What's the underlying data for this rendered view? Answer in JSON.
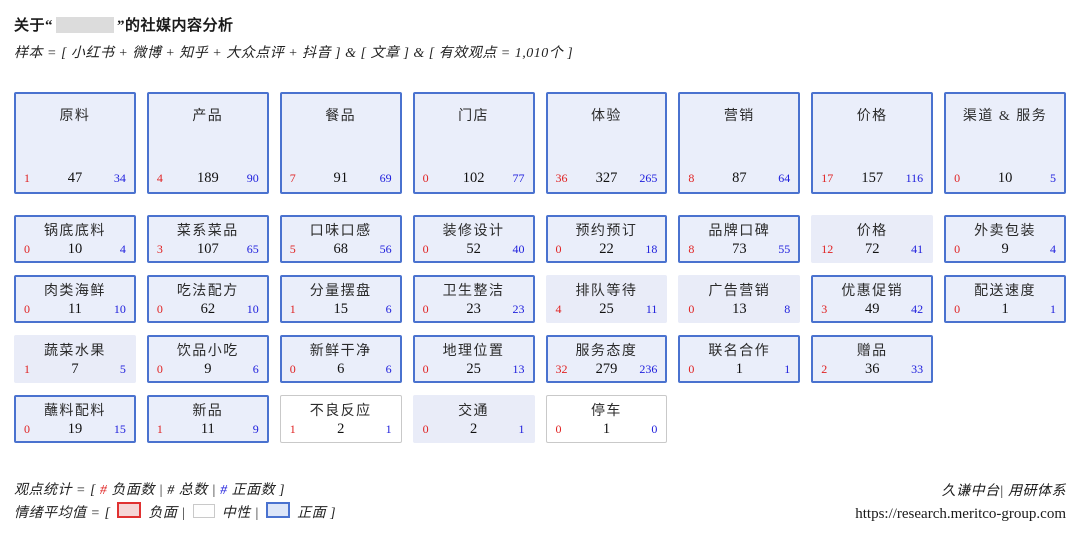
{
  "header": {
    "title_prefix": "关于“",
    "title_suffix": "”的社媒内容分析",
    "subtitle": "样本 = [ 小红书 + 微博 + 知乎 + 大众点评 + 抖音 ] & [ 文章 ] & [ 有效观点 = 1,010个 ]"
  },
  "colors": {
    "positive_border_blue": "#4a72cf",
    "box_fill_lavender": "#eaeefa",
    "negative_count_red": "#e02222",
    "positive_count_blue": "#2020dd",
    "neutral_border_gray": "#c9c9c9",
    "legend_negative_fill": "#f5d6d6",
    "legend_positive_fill": "#dde6f8",
    "redaction_gray": "#dcdcdc"
  },
  "chart_data": {
    "type": "table",
    "title": "关于“  ”的社媒内容分析",
    "value_format": "[负面数 | 总数 | 正面数]",
    "sentiment_styles": [
      "positive = 蓝色边框",
      "mild_positive = 浅蓝底无边框",
      "neutral = 白底灰框"
    ],
    "rows": [
      {
        "size": "large",
        "cells": [
          {
            "label": "原料",
            "neg": 1,
            "total": 47,
            "pos": 34,
            "sentiment": "positive"
          },
          {
            "label": "产品",
            "neg": 4,
            "total": 189,
            "pos": 90,
            "sentiment": "positive"
          },
          {
            "label": "餐品",
            "neg": 7,
            "total": 91,
            "pos": 69,
            "sentiment": "positive"
          },
          {
            "label": "门店",
            "neg": 0,
            "total": 102,
            "pos": 77,
            "sentiment": "positive"
          },
          {
            "label": "体验",
            "neg": 36,
            "total": 327,
            "pos": 265,
            "sentiment": "positive"
          },
          {
            "label": "营销",
            "neg": 8,
            "total": 87,
            "pos": 64,
            "sentiment": "positive"
          },
          {
            "label": "价格",
            "neg": 17,
            "total": 157,
            "pos": 116,
            "sentiment": "positive"
          },
          {
            "label": "渠道 & 服务",
            "neg": 0,
            "total": 10,
            "pos": 5,
            "sentiment": "positive"
          }
        ]
      },
      {
        "size": "small",
        "cells": [
          {
            "label": "锅底底料",
            "neg": 0,
            "total": 10,
            "pos": 4,
            "sentiment": "positive"
          },
          {
            "label": "菜系菜品",
            "neg": 3,
            "total": 107,
            "pos": 65,
            "sentiment": "positive"
          },
          {
            "label": "口味口感",
            "neg": 5,
            "total": 68,
            "pos": 56,
            "sentiment": "positive"
          },
          {
            "label": "装修设计",
            "neg": 0,
            "total": 52,
            "pos": 40,
            "sentiment": "positive"
          },
          {
            "label": "预约预订",
            "neg": 0,
            "total": 22,
            "pos": 18,
            "sentiment": "positive"
          },
          {
            "label": "品牌口碑",
            "neg": 8,
            "total": 73,
            "pos": 55,
            "sentiment": "positive"
          },
          {
            "label": "价格",
            "neg": 12,
            "total": 72,
            "pos": 41,
            "sentiment": "mild_positive"
          },
          {
            "label": "外卖包装",
            "neg": 0,
            "total": 9,
            "pos": 4,
            "sentiment": "positive"
          }
        ]
      },
      {
        "size": "small",
        "cells": [
          {
            "label": "肉类海鲜",
            "neg": 0,
            "total": 11,
            "pos": 10,
            "sentiment": "positive"
          },
          {
            "label": "吃法配方",
            "neg": 0,
            "total": 62,
            "pos": 10,
            "sentiment": "positive"
          },
          {
            "label": "分量摆盘",
            "neg": 1,
            "total": 15,
            "pos": 6,
            "sentiment": "positive"
          },
          {
            "label": "卫生整洁",
            "neg": 0,
            "total": 23,
            "pos": 23,
            "sentiment": "positive"
          },
          {
            "label": "排队等待",
            "neg": 4,
            "total": 25,
            "pos": 11,
            "sentiment": "mild_positive"
          },
          {
            "label": "广告营销",
            "neg": 0,
            "total": 13,
            "pos": 8,
            "sentiment": "mild_positive"
          },
          {
            "label": "优惠促销",
            "neg": 3,
            "total": 49,
            "pos": 42,
            "sentiment": "positive"
          },
          {
            "label": "配送速度",
            "neg": 0,
            "total": 1,
            "pos": 1,
            "sentiment": "positive"
          }
        ]
      },
      {
        "size": "small",
        "cells": [
          {
            "label": "蔬菜水果",
            "neg": 1,
            "total": 7,
            "pos": 5,
            "sentiment": "mild_positive"
          },
          {
            "label": "饮品小吃",
            "neg": 0,
            "total": 9,
            "pos": 6,
            "sentiment": "positive"
          },
          {
            "label": "新鲜干净",
            "neg": 0,
            "total": 6,
            "pos": 6,
            "sentiment": "positive"
          },
          {
            "label": "地理位置",
            "neg": 0,
            "total": 25,
            "pos": 13,
            "sentiment": "positive"
          },
          {
            "label": "服务态度",
            "neg": 32,
            "total": 279,
            "pos": 236,
            "sentiment": "positive"
          },
          {
            "label": "联名合作",
            "neg": 0,
            "total": 1,
            "pos": 1,
            "sentiment": "positive"
          },
          {
            "label": "赠品",
            "neg": 2,
            "total": 36,
            "pos": 33,
            "sentiment": "positive"
          },
          null
        ]
      },
      {
        "size": "small",
        "cells": [
          {
            "label": "蘸料配料",
            "neg": 0,
            "total": 19,
            "pos": 15,
            "sentiment": "positive"
          },
          {
            "label": "新品",
            "neg": 1,
            "total": 11,
            "pos": 9,
            "sentiment": "positive"
          },
          {
            "label": "不良反应",
            "neg": 1,
            "total": 2,
            "pos": 1,
            "sentiment": "neutral"
          },
          {
            "label": "交通",
            "neg": 0,
            "total": 2,
            "pos": 1,
            "sentiment": "mild_positive"
          },
          {
            "label": "停车",
            "neg": 0,
            "total": 1,
            "pos": 0,
            "sentiment": "neutral"
          },
          null,
          null,
          null
        ]
      }
    ]
  },
  "footer": {
    "stats_line": [
      {
        "t": "观点统计 = [ "
      },
      {
        "t": "#",
        "c": "red"
      },
      {
        "t": " 负面数 | "
      },
      {
        "t": "#",
        "c": "black"
      },
      {
        "t": " 总数 | "
      },
      {
        "t": "#",
        "c": "blue"
      },
      {
        "t": " 正面数 ]"
      }
    ],
    "sentiment_line": {
      "prefix": "情绪平均值 = [ ",
      "items": [
        {
          "swatch": "negative",
          "label": " 负面 | "
        },
        {
          "swatch": "neutral",
          "label": " 中性 | "
        },
        {
          "swatch": "positive",
          "label": " 正面 ]"
        }
      ]
    },
    "source": "久谦中台| 用研体系",
    "url": "https://research.meritco-group.com"
  }
}
